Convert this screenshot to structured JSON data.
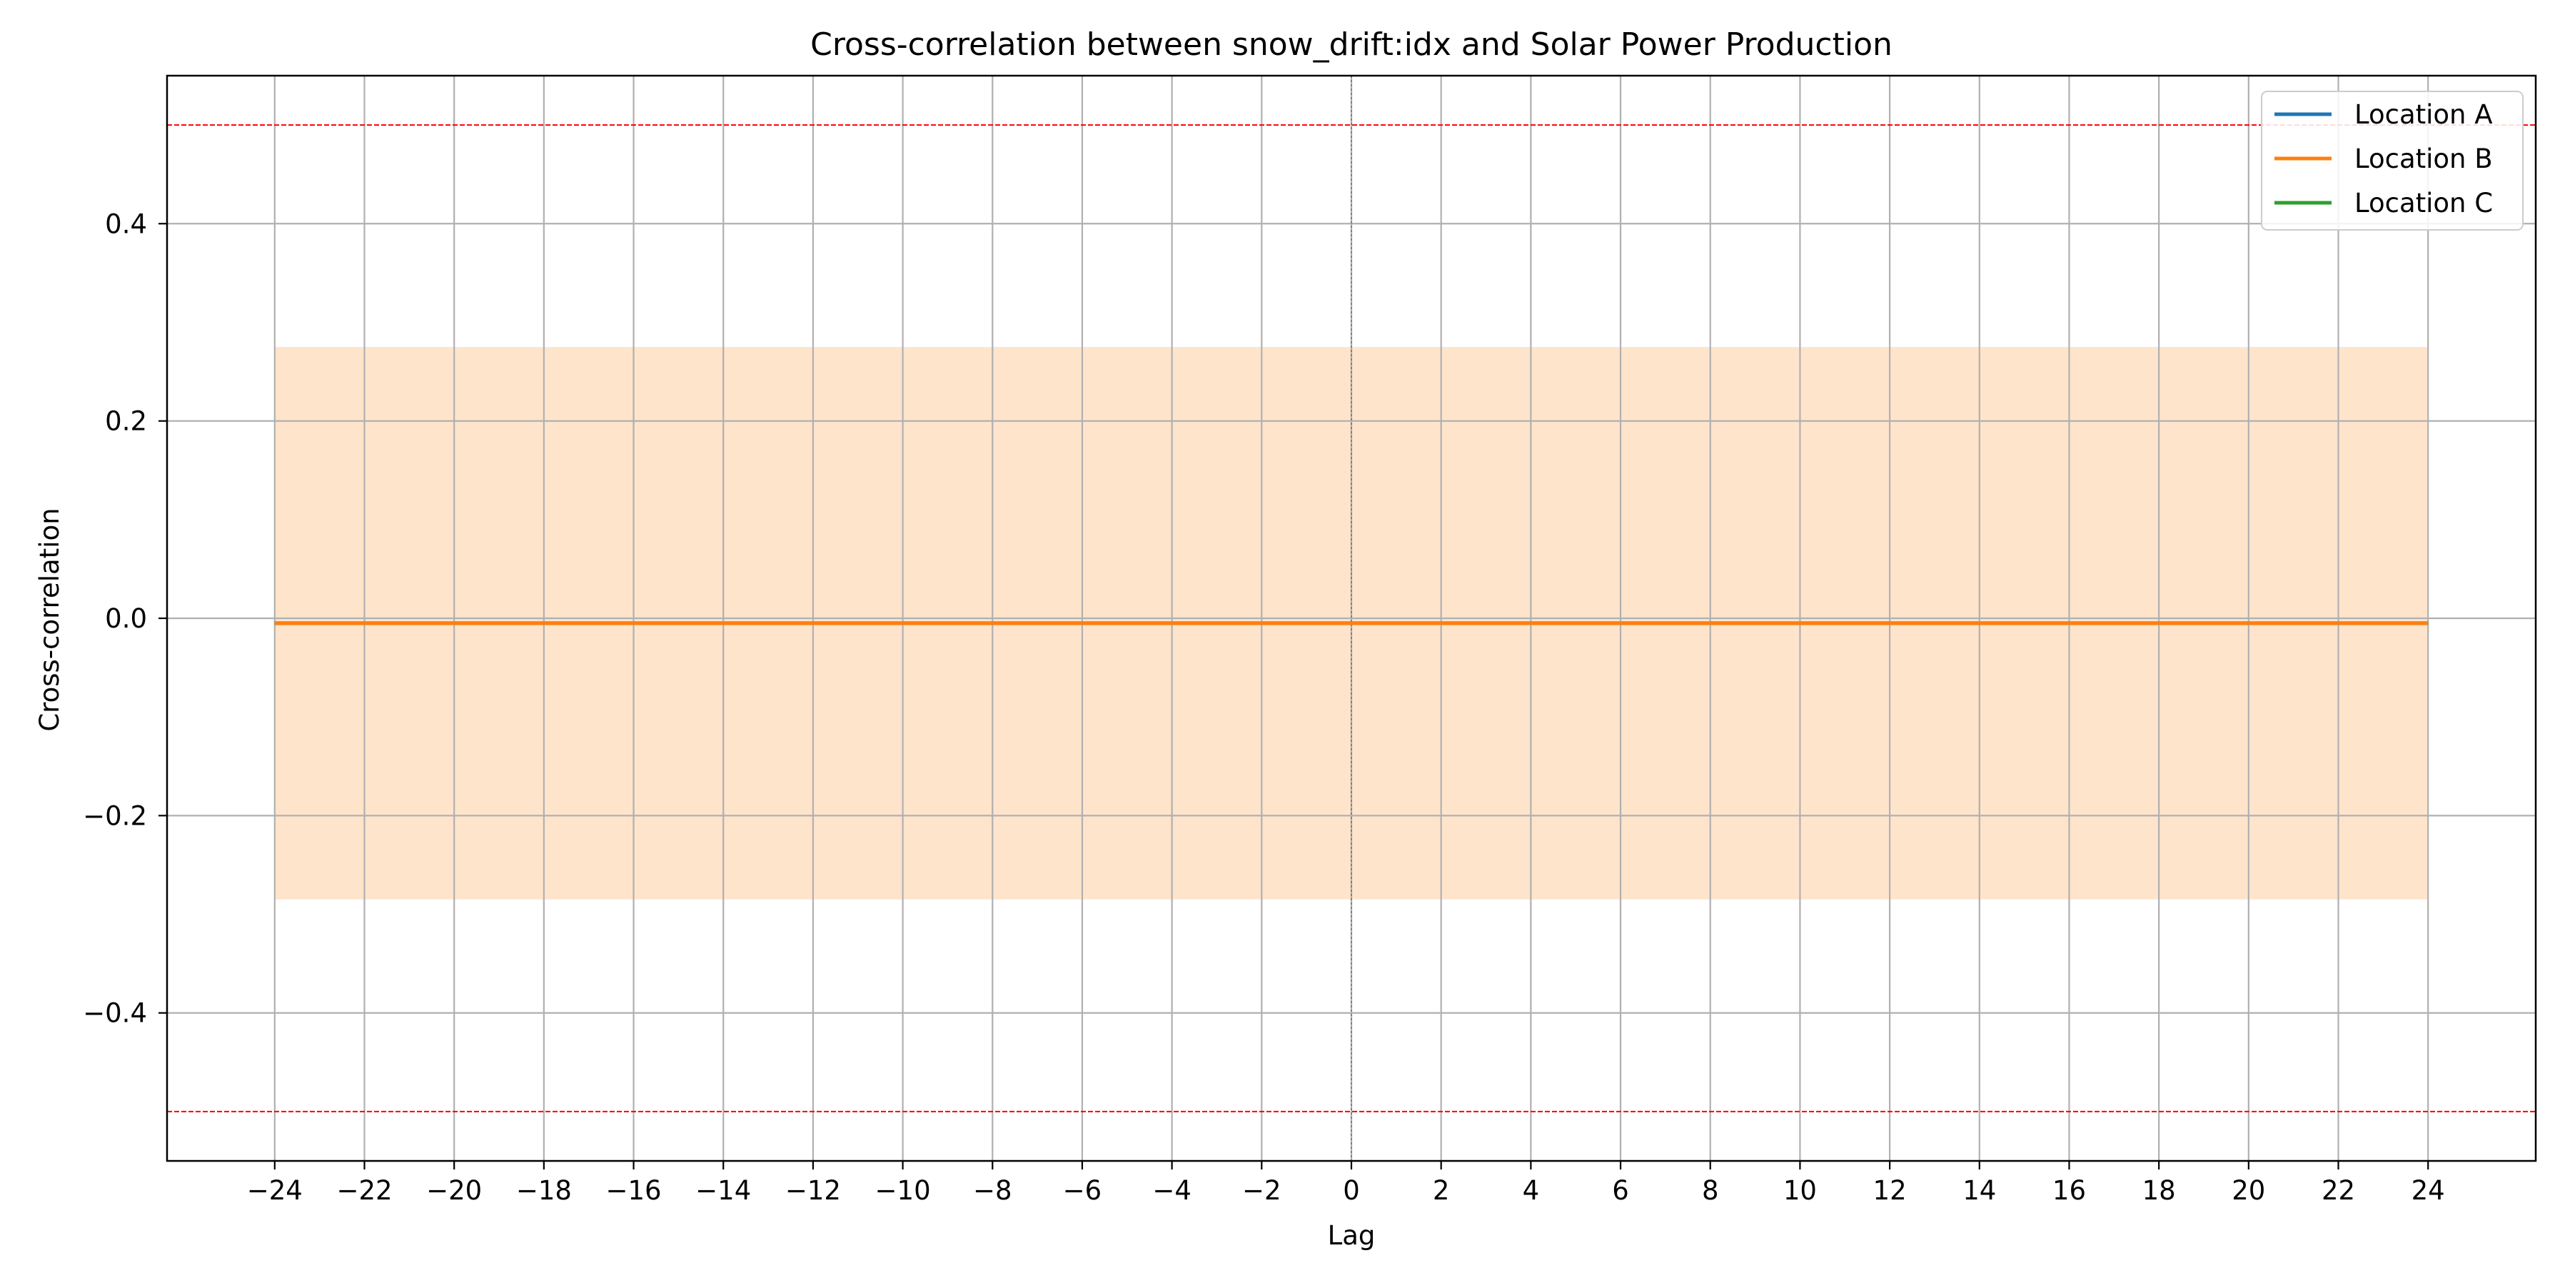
{
  "chart_data": {
    "type": "line",
    "title": "Cross-correlation between snow_drift:idx and Solar Power Production",
    "xlabel": "Lag",
    "ylabel": "Cross-correlation",
    "xlim": [
      -26.4,
      26.4
    ],
    "ylim": [
      -0.55,
      0.55
    ],
    "x": [
      -24,
      -23,
      -22,
      -21,
      -20,
      -19,
      -18,
      -17,
      -16,
      -15,
      -14,
      -13,
      -12,
      -11,
      -10,
      -9,
      -8,
      -7,
      -6,
      -5,
      -4,
      -3,
      -2,
      -1,
      0,
      1,
      2,
      3,
      4,
      5,
      6,
      7,
      8,
      9,
      10,
      11,
      12,
      13,
      14,
      15,
      16,
      17,
      18,
      19,
      20,
      21,
      22,
      23,
      24
    ],
    "x_ticks": [
      -24,
      -22,
      -20,
      -18,
      -16,
      -14,
      -12,
      -10,
      -8,
      -6,
      -4,
      -2,
      0,
      2,
      4,
      6,
      8,
      10,
      12,
      14,
      16,
      18,
      20,
      22,
      24
    ],
    "x_tick_labels": [
      "−24",
      "−22",
      "−20",
      "−18",
      "−16",
      "−14",
      "−12",
      "−10",
      "−8",
      "−6",
      "−4",
      "−2",
      "0",
      "2",
      "4",
      "6",
      "8",
      "10",
      "12",
      "14",
      "16",
      "18",
      "20",
      "22",
      "24"
    ],
    "y_ticks": [
      -0.4,
      -0.2,
      0.0,
      0.2,
      0.4
    ],
    "y_tick_labels": [
      "−0.4",
      "−0.2",
      "0.0",
      "0.2",
      "0.4"
    ],
    "series": [
      {
        "name": "Location A",
        "color": "#1f77b4",
        "values": [
          -0.005,
          -0.005,
          -0.005,
          -0.005,
          -0.005,
          -0.005,
          -0.005,
          -0.005,
          -0.005,
          -0.005,
          -0.005,
          -0.005,
          -0.005,
          -0.005,
          -0.005,
          -0.005,
          -0.005,
          -0.005,
          -0.005,
          -0.005,
          -0.005,
          -0.005,
          -0.005,
          -0.005,
          -0.005,
          -0.005,
          -0.005,
          -0.005,
          -0.005,
          -0.005,
          -0.005,
          -0.005,
          -0.005,
          -0.005,
          -0.005,
          -0.005,
          -0.005,
          -0.005,
          -0.005,
          -0.005,
          -0.005,
          -0.005,
          -0.005,
          -0.005,
          -0.005,
          -0.005,
          -0.005,
          -0.005,
          -0.005
        ]
      },
      {
        "name": "Location C",
        "color": "#2ca02c",
        "values": [
          -0.005,
          -0.005,
          -0.005,
          -0.005,
          -0.005,
          -0.005,
          -0.005,
          -0.005,
          -0.005,
          -0.005,
          -0.005,
          -0.005,
          -0.005,
          -0.005,
          -0.005,
          -0.005,
          -0.005,
          -0.005,
          -0.005,
          -0.005,
          -0.005,
          -0.005,
          -0.005,
          -0.005,
          -0.005,
          -0.005,
          -0.005,
          -0.005,
          -0.005,
          -0.005,
          -0.005,
          -0.005,
          -0.005,
          -0.005,
          -0.005,
          -0.005,
          -0.005,
          -0.005,
          -0.005,
          -0.005,
          -0.005,
          -0.005,
          -0.005,
          -0.005,
          -0.005,
          -0.005,
          -0.005,
          -0.005,
          -0.005
        ]
      },
      {
        "name": "Location B",
        "color": "#ff7f0e",
        "values": [
          -0.005,
          -0.005,
          -0.005,
          -0.005,
          -0.005,
          -0.005,
          -0.005,
          -0.005,
          -0.005,
          -0.005,
          -0.005,
          -0.005,
          -0.005,
          -0.005,
          -0.005,
          -0.005,
          -0.005,
          -0.005,
          -0.005,
          -0.005,
          -0.005,
          -0.005,
          -0.005,
          -0.005,
          -0.005,
          -0.005,
          -0.005,
          -0.005,
          -0.005,
          -0.005,
          -0.005,
          -0.005,
          -0.005,
          -0.005,
          -0.005,
          -0.005,
          -0.005,
          -0.005,
          -0.005,
          -0.005,
          -0.005,
          -0.005,
          -0.005,
          -0.005,
          -0.005,
          -0.005,
          -0.005,
          -0.005,
          -0.005
        ]
      }
    ],
    "legend_order": [
      "Location A",
      "Location B",
      "Location C"
    ],
    "confidence_band": {
      "x_range": [
        -24,
        24
      ],
      "upper": 0.275,
      "lower": -0.285,
      "color": "#ffe4cc"
    },
    "reference_lines": [
      {
        "y": 0.5,
        "color": "#ff0000",
        "style": "dashed"
      },
      {
        "y": -0.5,
        "color": "#ff0000",
        "style": "dashed"
      }
    ],
    "zero_lag_line": {
      "x": 0,
      "color": "#808080",
      "style": "dotted"
    },
    "grid": true,
    "legend_position": "top-right"
  }
}
